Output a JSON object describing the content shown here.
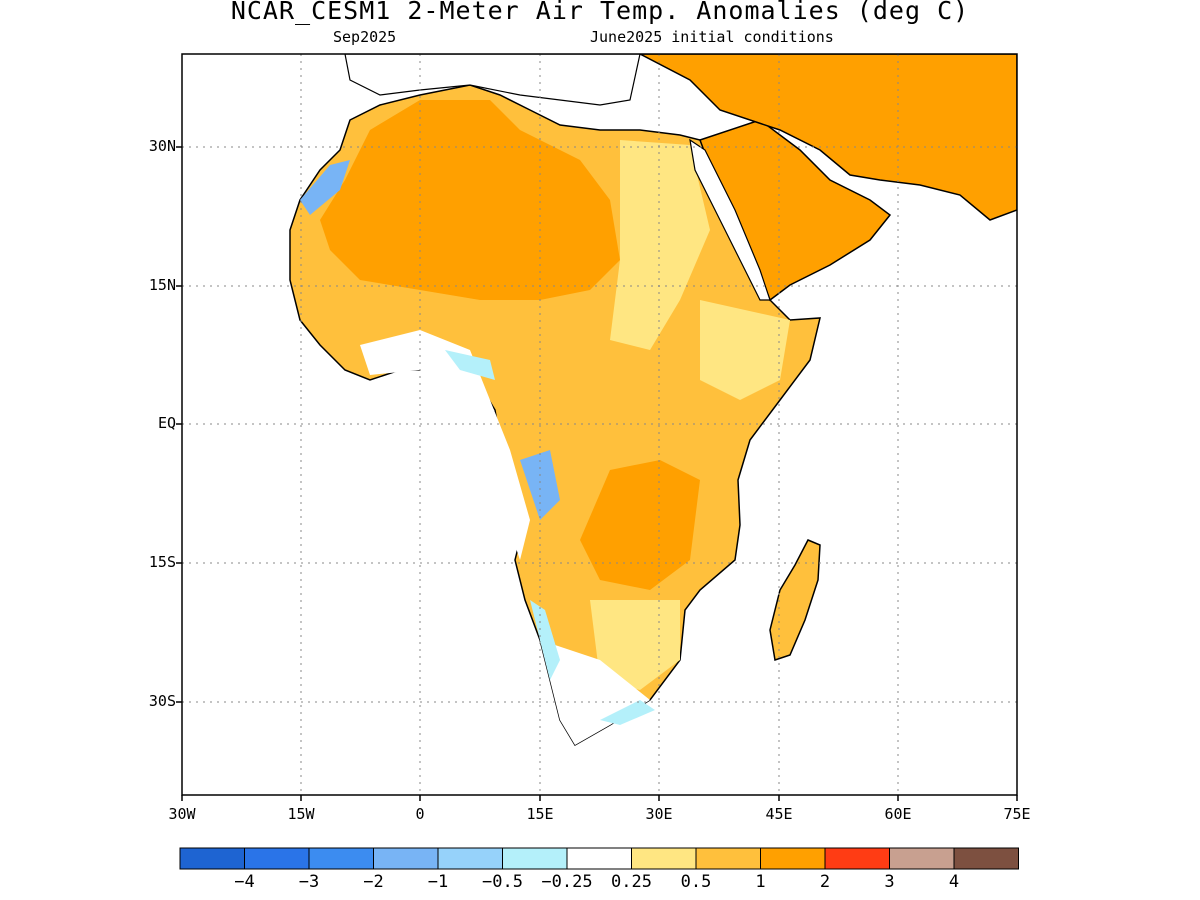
{
  "title": "NCAR_CESM1 2-Meter Air Temp. Anomalies (deg C)",
  "subtitle_left": "Sep2025",
  "subtitle_right": "June2025 initial conditions",
  "lat_ticks": [
    "30N",
    "15N",
    "EQ",
    "15S",
    "30S"
  ],
  "lon_ticks": [
    "30W",
    "15W",
    "0",
    "15E",
    "30E",
    "45E",
    "60E",
    "75E"
  ],
  "colorbar": {
    "colors": [
      "#1e64d2",
      "#2a74e8",
      "#3c8cf0",
      "#78b4f5",
      "#96d2fa",
      "#b4f0fa",
      "#ffffff",
      "#ffe682",
      "#ffc03c",
      "#ffa000",
      "#ff3c14",
      "#c8a090",
      "#7d5040"
    ],
    "labels": [
      "-4",
      "-3",
      "-2",
      "-1",
      "-0.5",
      "-0.25",
      "0.25",
      "0.5",
      "1",
      "2",
      "3",
      "4"
    ]
  }
}
